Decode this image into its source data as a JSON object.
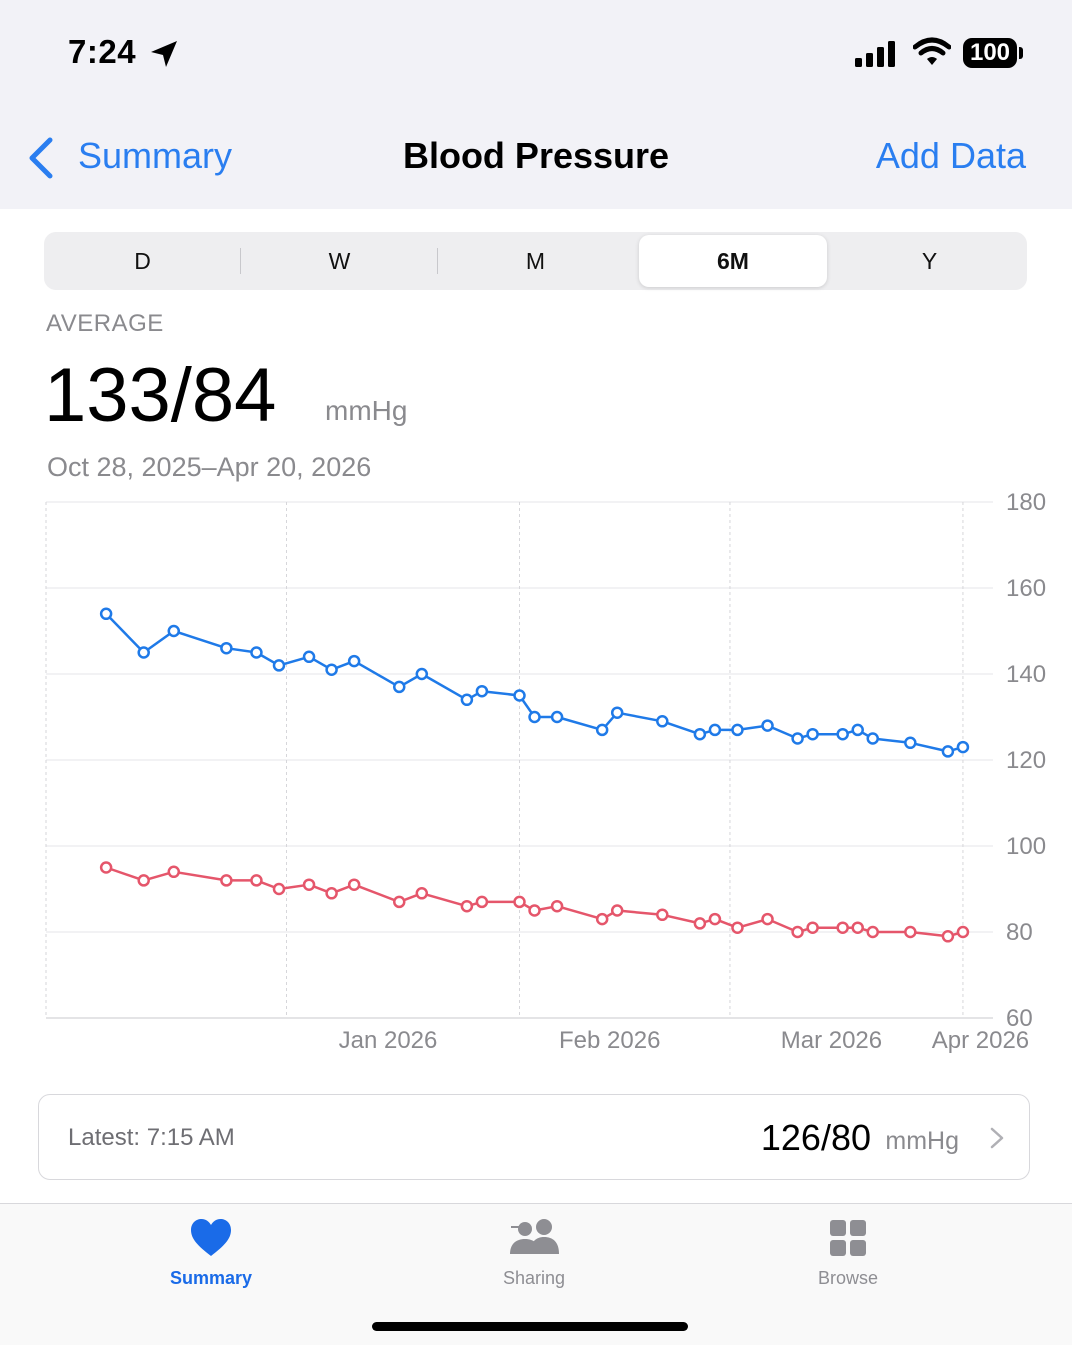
{
  "status": {
    "time": "7:24",
    "battery": "100"
  },
  "nav": {
    "back_label": "Summary",
    "title": "Blood Pressure",
    "action_label": "Add Data"
  },
  "segments": [
    "D",
    "W",
    "M",
    "6M",
    "Y"
  ],
  "selected_segment": "6M",
  "summary": {
    "label": "AVERAGE",
    "value": "133/84",
    "unit": "mmHg",
    "range": "Oct 28, 2025–Apr 20, 2026"
  },
  "latest": {
    "label": "Latest: 7:15 AM",
    "value": "126/80",
    "unit": "mmHg"
  },
  "tabs": [
    {
      "label": "Summary",
      "icon": "heart-icon",
      "active": true
    },
    {
      "label": "Sharing",
      "icon": "people-icon",
      "active": false
    },
    {
      "label": "Browse",
      "icon": "grid-icon",
      "active": false
    }
  ],
  "colors": {
    "accent": "#2a7ef0",
    "systolic": "#1f7ae8",
    "diastolic": "#e5566b"
  },
  "chart_data": {
    "type": "line",
    "x_tick_labels": [
      "Jan 2026",
      "Feb 2026",
      "Mar 2026",
      "Apr 2026"
    ],
    "y_ticks": [
      180,
      160,
      140,
      120,
      100,
      80,
      60
    ],
    "ylim": [
      60,
      180
    ],
    "grid": true,
    "y_axis_position": "right",
    "series": [
      {
        "points": [
          [
            "2025-12-08",
            154
          ],
          [
            "2025-12-13",
            145
          ],
          [
            "2025-12-17",
            150
          ],
          [
            "2025-12-24",
            146
          ],
          [
            "2025-12-28",
            145
          ],
          [
            "2025-12-31",
            142
          ],
          [
            "2026-01-04",
            144
          ],
          [
            "2026-01-07",
            141
          ],
          [
            "2026-01-10",
            143
          ],
          [
            "2026-01-16",
            137
          ],
          [
            "2026-01-19",
            140
          ],
          [
            "2026-01-25",
            134
          ],
          [
            "2026-01-27",
            136
          ],
          [
            "2026-02-01",
            135
          ],
          [
            "2026-02-03",
            130
          ],
          [
            "2026-02-06",
            130
          ],
          [
            "2026-02-12",
            127
          ],
          [
            "2026-02-14",
            131
          ],
          [
            "2026-02-20",
            129
          ],
          [
            "2026-02-25",
            126
          ],
          [
            "2026-02-27",
            127
          ],
          [
            "2026-03-02",
            127
          ],
          [
            "2026-03-06",
            128
          ],
          [
            "2026-03-10",
            125
          ],
          [
            "2026-03-12",
            126
          ],
          [
            "2026-03-16",
            126
          ],
          [
            "2026-03-18",
            127
          ],
          [
            "2026-03-20",
            125
          ],
          [
            "2026-03-25",
            124
          ],
          [
            "2026-03-30",
            122
          ],
          [
            "2026-04-01",
            123
          ]
        ]
      },
      {
        "points": [
          [
            "2025-12-08",
            95
          ],
          [
            "2025-12-13",
            92
          ],
          [
            "2025-12-17",
            94
          ],
          [
            "2025-12-24",
            92
          ],
          [
            "2025-12-28",
            92
          ],
          [
            "2025-12-31",
            90
          ],
          [
            "2026-01-04",
            91
          ],
          [
            "2026-01-07",
            89
          ],
          [
            "2026-01-10",
            91
          ],
          [
            "2026-01-16",
            87
          ],
          [
            "2026-01-19",
            89
          ],
          [
            "2026-01-25",
            86
          ],
          [
            "2026-01-27",
            87
          ],
          [
            "2026-02-01",
            87
          ],
          [
            "2026-02-03",
            85
          ],
          [
            "2026-02-06",
            86
          ],
          [
            "2026-02-12",
            83
          ],
          [
            "2026-02-14",
            85
          ],
          [
            "2026-02-20",
            84
          ],
          [
            "2026-02-25",
            82
          ],
          [
            "2026-02-27",
            83
          ],
          [
            "2026-03-02",
            81
          ],
          [
            "2026-03-06",
            83
          ],
          [
            "2026-03-10",
            80
          ],
          [
            "2026-03-12",
            81
          ],
          [
            "2026-03-16",
            81
          ],
          [
            "2026-03-18",
            81
          ],
          [
            "2026-03-20",
            80
          ],
          [
            "2026-03-25",
            80
          ],
          [
            "2026-03-30",
            79
          ],
          [
            "2026-04-01",
            80
          ]
        ]
      }
    ]
  }
}
